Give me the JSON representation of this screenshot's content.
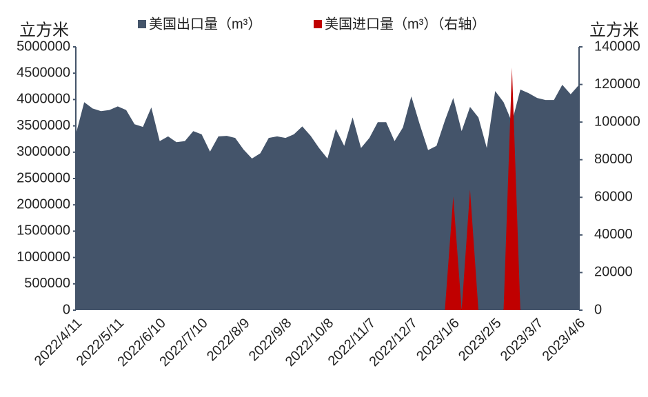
{
  "chart_data": {
    "type": "area",
    "y_label": "立方米",
    "y2_label": "立方米",
    "categories": [
      "2022/4/11",
      null,
      null,
      null,
      null,
      "2022/5/11",
      null,
      null,
      null,
      null,
      "2022/6/10",
      null,
      null,
      null,
      null,
      "2022/7/10",
      null,
      null,
      null,
      null,
      "2022/8/9",
      null,
      null,
      null,
      null,
      "2022/9/8",
      null,
      null,
      null,
      null,
      "2022/10/8",
      null,
      null,
      null,
      null,
      "2022/11/7",
      null,
      null,
      null,
      null,
      "2022/12/7",
      null,
      null,
      null,
      null,
      "2023/1/6",
      null,
      null,
      null,
      null,
      "2023/2/5",
      null,
      null,
      null,
      null,
      "2023/3/7",
      null,
      null,
      null,
      null,
      "2023/4/6"
    ],
    "series": [
      {
        "name": "美国出口量（m³）",
        "color": "#44546a",
        "values": [
          3340000,
          3950000,
          3830000,
          3780000,
          3800000,
          3870000,
          3800000,
          3530000,
          3480000,
          3850000,
          3210000,
          3300000,
          3190000,
          3210000,
          3400000,
          3340000,
          3010000,
          3300000,
          3310000,
          3270000,
          3050000,
          2880000,
          2980000,
          3270000,
          3300000,
          3270000,
          3340000,
          3490000,
          3310000,
          3080000,
          2880000,
          3440000,
          3120000,
          3660000,
          3080000,
          3270000,
          3570000,
          3570000,
          3210000,
          3470000,
          4060000,
          3530000,
          3040000,
          3120000,
          3600000,
          4030000,
          3400000,
          3860000,
          3660000,
          3080000,
          4160000,
          3950000,
          3570000,
          4190000,
          4120000,
          4030000,
          3990000,
          3990000,
          4280000,
          4100000,
          4280000
        ]
      },
      {
        "name": "美国进口量（m³）（右轴）",
        "color": "#c00000",
        "axis": "y2",
        "values": [
          0,
          0,
          0,
          0,
          0,
          0,
          0,
          0,
          0,
          0,
          0,
          0,
          0,
          0,
          0,
          0,
          0,
          0,
          0,
          0,
          0,
          0,
          0,
          0,
          0,
          0,
          0,
          0,
          0,
          0,
          0,
          0,
          0,
          0,
          0,
          0,
          0,
          0,
          0,
          0,
          0,
          0,
          0,
          0,
          0,
          60400,
          0,
          64100,
          0,
          0,
          0,
          0,
          129000,
          0,
          0,
          0,
          0,
          0,
          0,
          0,
          0
        ]
      }
    ],
    "ylim": [
      0,
      5000000
    ],
    "yticks": [
      0,
      500000,
      1000000,
      1500000,
      2000000,
      2500000,
      3000000,
      3500000,
      4000000,
      4500000,
      5000000
    ],
    "y2lim": [
      0,
      140000
    ],
    "y2ticks": [
      0,
      20000,
      40000,
      60000,
      80000,
      100000,
      120000,
      140000
    ]
  }
}
